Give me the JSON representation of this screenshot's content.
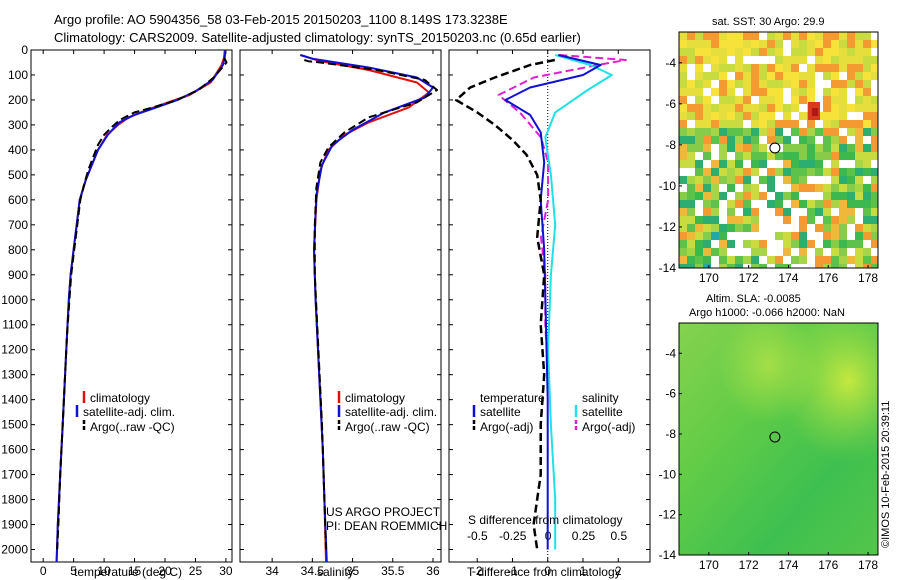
{
  "header": {
    "line1": "Argo profile: AO 5904356_58 03-Feb-2015 20150203_1100 8.149S 173.3238E",
    "line2": "Climatology: CARS2009. Satellite-adjusted climatology: synTS_20150203.nc (0.65d earlier)"
  },
  "credit": "©IMOS 10-Feb-2015 20:39:11",
  "colors": {
    "climatology": "#e01010",
    "satellite": "#1010d0",
    "argo": "#000000",
    "sal_sat": "#20e0e8",
    "sal_argo": "#e020d0"
  },
  "chart_data": [
    {
      "type": "line",
      "name": "temperature",
      "xlabel": "temperature (deg C)",
      "ylabel": "depth",
      "xlim": [
        -2,
        31
      ],
      "xticks": [
        0,
        5,
        10,
        15,
        20,
        25,
        30
      ],
      "ylim": [
        2050,
        0
      ],
      "yticks": [
        0,
        100,
        200,
        300,
        400,
        500,
        600,
        700,
        800,
        900,
        1000,
        1100,
        1200,
        1300,
        1400,
        1500,
        1600,
        1700,
        1800,
        1900,
        2000
      ],
      "legend": [
        "climatology",
        "satellite-adj. clim.",
        "Argo(..raw -QC)"
      ],
      "series": [
        {
          "name": "climatology",
          "points": [
            [
              29.8,
              0
            ],
            [
              29.7,
              30
            ],
            [
              29.3,
              60
            ],
            [
              27.5,
              130
            ],
            [
              24,
              180
            ],
            [
              20.5,
              210
            ],
            [
              17,
              240
            ],
            [
              14,
              270
            ],
            [
              12.3,
              300
            ],
            [
              10.5,
              340
            ],
            [
              9,
              400
            ],
            [
              8,
              460
            ],
            [
              7,
              520
            ],
            [
              6,
              600
            ],
            [
              5.5,
              700
            ],
            [
              5,
              800
            ],
            [
              4.5,
              900
            ],
            [
              4.2,
              1000
            ],
            [
              3.9,
              1150
            ],
            [
              3.6,
              1300
            ],
            [
              3.2,
              1500
            ],
            [
              2.8,
              1700
            ],
            [
              2.4,
              1900
            ],
            [
              2.2,
              2050
            ]
          ]
        },
        {
          "name": "satellite-adj. clim.",
          "points": [
            [
              29.9,
              0
            ],
            [
              29.8,
              30
            ],
            [
              29.5,
              60
            ],
            [
              27.8,
              120
            ],
            [
              25,
              165
            ],
            [
              22,
              200
            ],
            [
              18,
              235
            ],
            [
              15,
              260
            ],
            [
              12.5,
              290
            ],
            [
              10.6,
              340
            ],
            [
              9,
              400
            ],
            [
              8,
              460
            ],
            [
              7,
              520
            ],
            [
              6,
              600
            ],
            [
              5.5,
              700
            ],
            [
              5,
              800
            ],
            [
              4.5,
              900
            ],
            [
              4.2,
              1000
            ],
            [
              3.9,
              1150
            ],
            [
              3.6,
              1300
            ],
            [
              3.2,
              1500
            ],
            [
              2.8,
              1700
            ],
            [
              2.4,
              1900
            ],
            [
              2.2,
              2050
            ]
          ]
        },
        {
          "name": "Argo(..raw -QC)",
          "points": [
            [
              29.7,
              30
            ],
            [
              30.1,
              50
            ],
            [
              29.4,
              70
            ],
            [
              28,
              110
            ],
            [
              25.5,
              160
            ],
            [
              22,
              200
            ],
            [
              18,
              230
            ],
            [
              15,
              250
            ],
            [
              12.6,
              280
            ],
            [
              11.2,
              310
            ],
            [
              10,
              340
            ],
            [
              9,
              380
            ],
            [
              8.2,
              430
            ],
            [
              7.4,
              480
            ],
            [
              6.7,
              540
            ],
            [
              6.1,
              600
            ],
            [
              5.6,
              700
            ],
            [
              5.1,
              800
            ],
            [
              4.6,
              900
            ],
            [
              4.3,
              1000
            ],
            [
              3.9,
              1150
            ],
            [
              3.6,
              1300
            ],
            [
              3.2,
              1500
            ],
            [
              2.8,
              1700
            ],
            [
              2.5,
              1900
            ],
            [
              2.3,
              2000
            ]
          ]
        }
      ]
    },
    {
      "type": "line",
      "name": "salinity",
      "xlabel": "salinity",
      "ylabel": "depth",
      "xlim": [
        33.6,
        36.1
      ],
      "xticks": [
        34,
        34.5,
        35,
        35.5,
        36
      ],
      "xticklabels": [
        "34",
        "34.5",
        "35",
        "35.5",
        "36"
      ],
      "ylim": [
        2050,
        0
      ],
      "legend": [
        "climatology",
        "satellite-adj. clim.",
        "Argo(..raw -QC)"
      ],
      "annotation": [
        "US ARGO PROJECT",
        "PI: DEAN ROEMMICH"
      ],
      "series": [
        {
          "name": "climatology",
          "points": [
            [
              34.35,
              20
            ],
            [
              34.6,
              45
            ],
            [
              35.2,
              80
            ],
            [
              35.8,
              130
            ],
            [
              35.95,
              170
            ],
            [
              35.7,
              230
            ],
            [
              35.2,
              290
            ],
            [
              34.9,
              340
            ],
            [
              34.7,
              400
            ],
            [
              34.6,
              480
            ],
            [
              34.55,
              600
            ],
            [
              34.52,
              800
            ],
            [
              34.54,
              1000
            ],
            [
              34.57,
              1200
            ],
            [
              34.6,
              1400
            ],
            [
              34.63,
              1600
            ],
            [
              34.65,
              1800
            ],
            [
              34.67,
              2050
            ]
          ]
        },
        {
          "name": "satellite-adj. clim.",
          "points": [
            [
              34.35,
              20
            ],
            [
              34.5,
              35
            ],
            [
              35.2,
              70
            ],
            [
              35.8,
              110
            ],
            [
              36.0,
              150
            ],
            [
              35.9,
              190
            ],
            [
              35.4,
              250
            ],
            [
              35.0,
              320
            ],
            [
              34.75,
              380
            ],
            [
              34.62,
              460
            ],
            [
              34.55,
              580
            ],
            [
              34.52,
              800
            ],
            [
              34.54,
              1000
            ],
            [
              34.57,
              1200
            ],
            [
              34.6,
              1400
            ],
            [
              34.63,
              1600
            ],
            [
              34.65,
              1800
            ],
            [
              34.68,
              2050
            ]
          ]
        },
        {
          "name": "Argo(..raw -QC)",
          "points": [
            [
              34.4,
              40
            ],
            [
              34.45,
              45
            ],
            [
              34.6,
              50
            ],
            [
              35.3,
              80
            ],
            [
              35.9,
              120
            ],
            [
              36.05,
              160
            ],
            [
              35.8,
              210
            ],
            [
              35.2,
              270
            ],
            [
              34.9,
              330
            ],
            [
              34.7,
              390
            ],
            [
              34.6,
              450
            ],
            [
              34.55,
              550
            ],
            [
              34.53,
              700
            ],
            [
              34.53,
              900
            ],
            [
              34.56,
              1100
            ],
            [
              34.59,
              1300
            ],
            [
              34.62,
              1500
            ],
            [
              34.64,
              1700
            ],
            [
              34.66,
              1900
            ],
            [
              34.67,
              2000
            ]
          ]
        }
      ]
    },
    {
      "type": "line",
      "name": "difference from climatology",
      "xlabel": "T difference from climatology",
      "xlim": [
        -2.8,
        2.9
      ],
      "xticks": [
        -2,
        -1,
        0,
        1,
        2
      ],
      "top_axis_label": "S difference from climatology",
      "top_xticks": [
        -0.5,
        -0.25,
        0,
        0.25,
        0.5
      ],
      "top_xticklabels": [
        "-0.5",
        "-0.25",
        "0",
        "0.25",
        "0.5"
      ],
      "top_xlim": [
        -0.7,
        0.72
      ],
      "ylim": [
        2050,
        0
      ],
      "legend": {
        "temperature": [
          "satellite",
          "Argo(-adj)"
        ],
        "salinity": [
          "satellite",
          "Argo(-adj)"
        ]
      },
      "legend_headers": [
        "temperature",
        "salinity"
      ],
      "series": [
        {
          "name": "T satellite",
          "points": [
            [
              0.3,
              20
            ],
            [
              1.5,
              60
            ],
            [
              1.0,
              100
            ],
            [
              -0.5,
              150
            ],
            [
              -1.2,
              200
            ],
            [
              -0.5,
              260
            ],
            [
              -0.2,
              330
            ],
            [
              -0.1,
              450
            ],
            [
              -0.2,
              600
            ],
            [
              -0.1,
              800
            ],
            [
              -0.05,
              1100
            ],
            [
              0,
              1400
            ],
            [
              0,
              1700
            ],
            [
              0,
              2000
            ]
          ]
        },
        {
          "name": "T Argo(-adj)",
          "points": [
            [
              0.2,
              40
            ],
            [
              -0.5,
              60
            ],
            [
              -1.5,
              110
            ],
            [
              -2.2,
              150
            ],
            [
              -2.6,
              200
            ],
            [
              -2.0,
              250
            ],
            [
              -1.5,
              300
            ],
            [
              -1.0,
              360
            ],
            [
              -0.6,
              420
            ],
            [
              -0.3,
              500
            ],
            [
              -0.2,
              600
            ],
            [
              -0.3,
              750
            ],
            [
              -0.1,
              900
            ],
            [
              -0.2,
              1100
            ],
            [
              -0.1,
              1300
            ],
            [
              -0.2,
              1500
            ],
            [
              -0.2,
              1700
            ],
            [
              -0.4,
              1900
            ],
            [
              -0.3,
              2000
            ]
          ]
        },
        {
          "name": "S satellite",
          "points": [
            [
              0.05,
              20
            ],
            [
              0.3,
              60
            ],
            [
              0.45,
              100
            ],
            [
              0.28,
              160
            ],
            [
              0.05,
              250
            ],
            [
              -0.02,
              350
            ],
            [
              0.02,
              500
            ],
            [
              0.05,
              700
            ],
            [
              0.02,
              900
            ],
            [
              0,
              1200
            ],
            [
              0.02,
              1500
            ],
            [
              0.05,
              1800
            ],
            [
              0.05,
              2000
            ]
          ]
        },
        {
          "name": "S Argo(-adj)",
          "points": [
            [
              0.08,
              20
            ],
            [
              0.55,
              40
            ],
            [
              0.35,
              60
            ],
            [
              -0.1,
              110
            ],
            [
              -0.35,
              180
            ],
            [
              -0.2,
              250
            ],
            [
              -0.05,
              350
            ],
            [
              0,
              450
            ],
            [
              0,
              600
            ],
            [
              -0.05,
              750
            ],
            [
              -0.02,
              900
            ],
            [
              -0.02,
              1100
            ],
            [
              0,
              1300
            ]
          ]
        }
      ]
    },
    {
      "type": "heatmap",
      "name": "sat. SST",
      "title": "sat. SST: 30 Argo: 29.9",
      "xlim": [
        168.5,
        178.5
      ],
      "xticks": [
        170,
        172,
        174,
        176,
        178
      ],
      "ylim": [
        -14,
        -2.5
      ],
      "yticks": [
        -4,
        -6,
        -8,
        -10,
        -12,
        -14
      ],
      "marker": {
        "lon": 173.32,
        "lat": -8.15
      }
    },
    {
      "type": "heatmap",
      "name": "SLA",
      "title1": "Altim. SLA: -0.0085",
      "title2": "Argo h1000: -0.066 h2000: NaN",
      "xlim": [
        168.5,
        178.5
      ],
      "xticks": [
        170,
        172,
        174,
        176,
        178
      ],
      "ylim": [
        -14,
        -2.5
      ],
      "yticks": [
        -4,
        -6,
        -8,
        -10,
        -12,
        -14
      ],
      "marker": {
        "lon": 173.32,
        "lat": -8.15
      }
    }
  ]
}
